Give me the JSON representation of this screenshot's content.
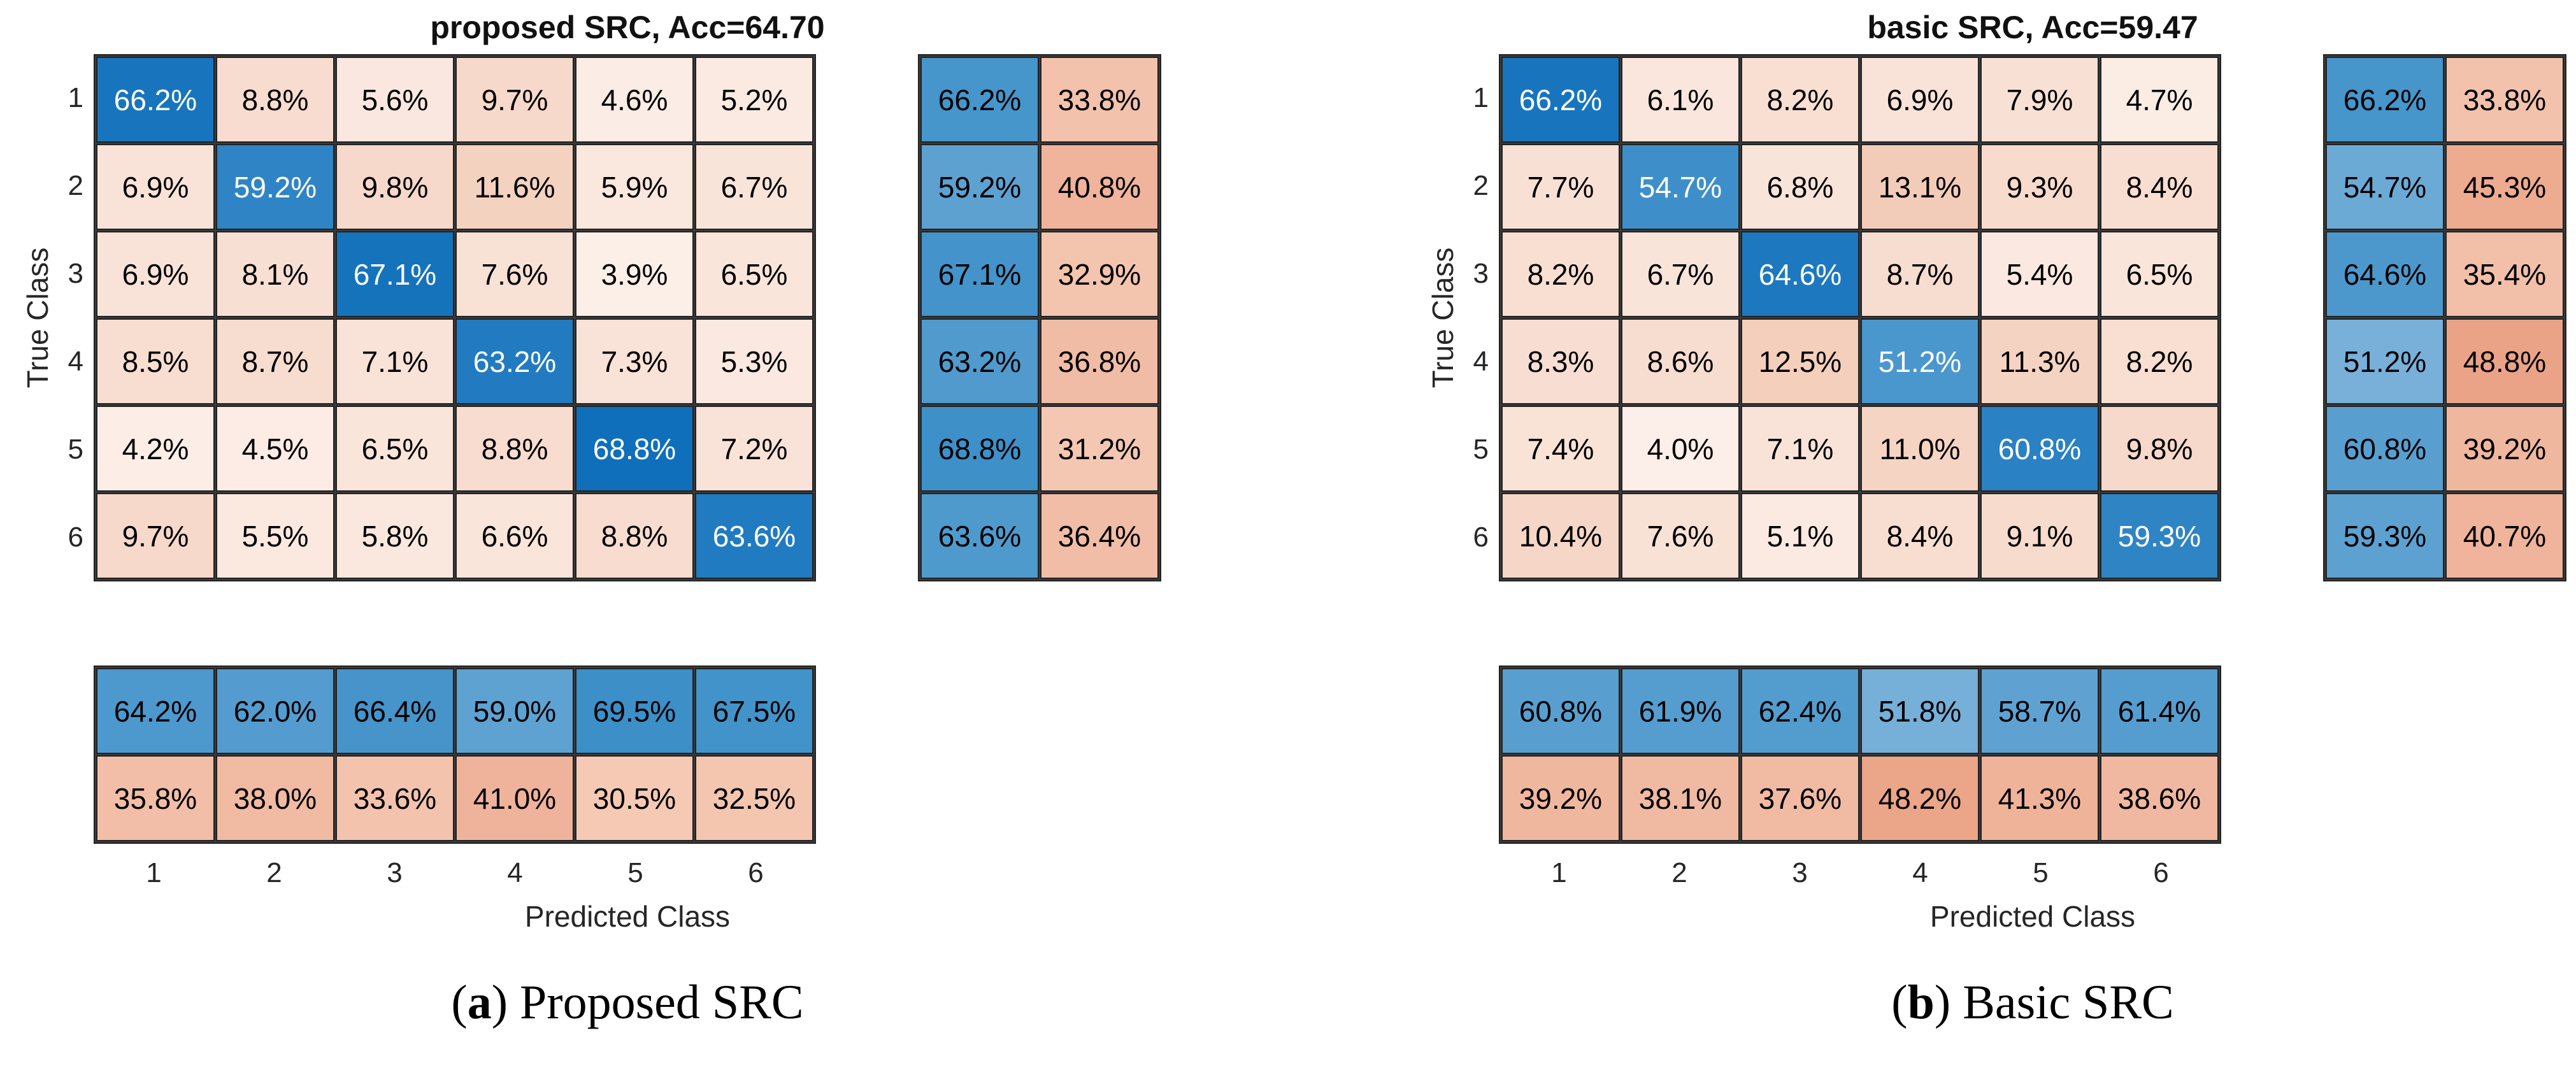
{
  "colors": {
    "grid_line": "#222222",
    "diag_blue_strong": "#0b6cb9",
    "diag_blue_light": "#6fb0d9",
    "off_diag_light": "#fdf2ed",
    "off_diag_strong": "#f2c9b4",
    "summary_blue_light": "#8cbbdf",
    "summary_blue_strong": "#3a8ec7",
    "summary_salmon_light": "#f6ceba",
    "summary_salmon_strong": "#eaa185",
    "diag_text": "#ffffff",
    "cell_text": "#000000"
  },
  "chart_data": [
    {
      "type": "heatmap",
      "title": "proposed SRC, Acc=64.70",
      "caption": {
        "marker": "a",
        "text": "Proposed SRC"
      },
      "xlabel": "Predicted Class",
      "ylabel": "True Class",
      "x_tick_labels": [
        "1",
        "2",
        "3",
        "4",
        "5",
        "6"
      ],
      "y_tick_labels": [
        "1",
        "2",
        "3",
        "4",
        "5",
        "6"
      ],
      "values_unit": "percent",
      "matrix": [
        [
          66.2,
          8.8,
          5.6,
          9.7,
          4.6,
          5.2
        ],
        [
          6.9,
          59.2,
          9.8,
          11.6,
          5.9,
          6.7
        ],
        [
          6.9,
          8.1,
          67.1,
          7.6,
          3.9,
          6.5
        ],
        [
          8.5,
          8.7,
          7.1,
          63.2,
          7.3,
          5.3
        ],
        [
          4.2,
          4.5,
          6.5,
          8.8,
          68.8,
          7.2
        ],
        [
          9.7,
          5.5,
          5.8,
          6.6,
          8.8,
          63.6
        ]
      ],
      "row_summary": [
        [
          66.2,
          33.8
        ],
        [
          59.2,
          40.8
        ],
        [
          67.1,
          32.9
        ],
        [
          63.2,
          36.8
        ],
        [
          68.8,
          31.2
        ],
        [
          63.6,
          36.4
        ]
      ],
      "col_summary": [
        [
          64.2,
          62.0,
          66.4,
          59.0,
          69.5,
          67.5
        ],
        [
          35.8,
          38.0,
          33.6,
          41.0,
          30.5,
          32.5
        ]
      ]
    },
    {
      "type": "heatmap",
      "title": "basic SRC, Acc=59.47",
      "caption": {
        "marker": "b",
        "text": "Basic SRC"
      },
      "xlabel": "Predicted Class",
      "ylabel": "True Class",
      "x_tick_labels": [
        "1",
        "2",
        "3",
        "4",
        "5",
        "6"
      ],
      "y_tick_labels": [
        "1",
        "2",
        "3",
        "4",
        "5",
        "6"
      ],
      "values_unit": "percent",
      "matrix": [
        [
          66.2,
          6.1,
          8.2,
          6.9,
          7.9,
          4.7
        ],
        [
          7.7,
          54.7,
          6.8,
          13.1,
          9.3,
          8.4
        ],
        [
          8.2,
          6.7,
          64.6,
          8.7,
          5.4,
          6.5
        ],
        [
          8.3,
          8.6,
          12.5,
          51.2,
          11.3,
          8.2
        ],
        [
          7.4,
          4.0,
          7.1,
          11.0,
          60.8,
          9.8
        ],
        [
          10.4,
          7.6,
          5.1,
          8.4,
          9.1,
          59.3
        ]
      ],
      "row_summary": [
        [
          66.2,
          33.8
        ],
        [
          54.7,
          45.3
        ],
        [
          64.6,
          35.4
        ],
        [
          51.2,
          48.8
        ],
        [
          60.8,
          39.2
        ],
        [
          59.3,
          40.7
        ]
      ],
      "col_summary": [
        [
          60.8,
          61.9,
          62.4,
          51.8,
          58.7,
          61.4
        ],
        [
          39.2,
          38.1,
          37.6,
          48.2,
          41.3,
          38.6
        ]
      ]
    }
  ]
}
